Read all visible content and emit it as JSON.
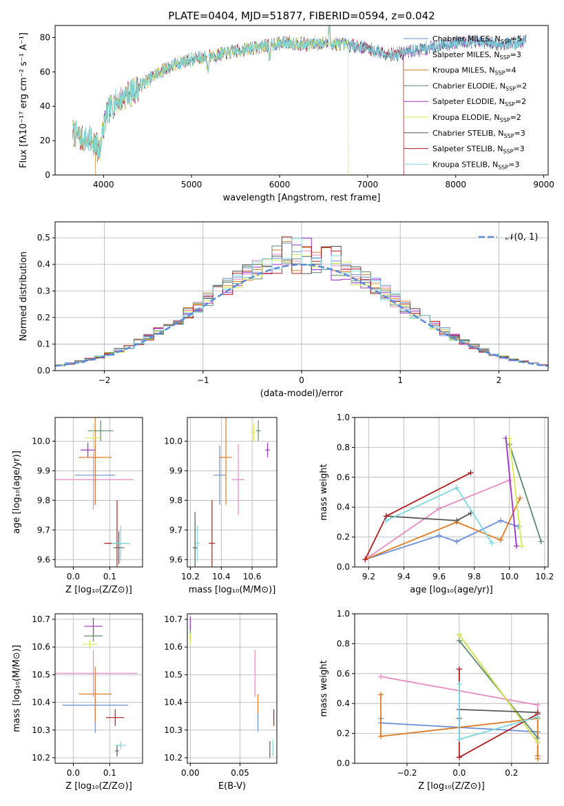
{
  "figure_title": "PLATE=0404, MJD=51877, FIBERID=0594, z=0.042",
  "colors": {
    "chabrier_miles": "#6a8fd8",
    "salpeter_miles": "#e88ac1",
    "kroupa_miles": "#e07b22",
    "chabrier_elodie": "#5a8a6a",
    "salpeter_elodie": "#9b30c8",
    "kroupa_elodie": "#d8ea4a",
    "chabrier_stelib": "#555555",
    "salpeter_stelib": "#b01c1c",
    "kroupa_stelib": "#7ad8e0"
  },
  "chart_data": [
    {
      "id": "spectrum",
      "type": "line",
      "title": "PLATE=0404, MJD=51877, FIBERID=0594, z=0.042",
      "xlabel": "wavelength [Angstrom, rest frame]",
      "ylabel": "Flux [fλ10⁻¹⁷ erg cm⁻² s⁻¹ A⁻¹]",
      "xlim": [
        3450,
        9050
      ],
      "ylim": [
        0,
        87
      ],
      "xticks": [
        "4000",
        "5000",
        "6000",
        "7000",
        "8000",
        "9000"
      ],
      "xtick_values": [
        4000,
        5000,
        6000,
        7000,
        8000,
        9000
      ],
      "yticks": [
        "0",
        "20",
        "40",
        "60",
        "80"
      ],
      "ytick_values": [
        0,
        20,
        40,
        60,
        80
      ],
      "legend_position": "right",
      "legend": [
        "Chabrier MILES, N_SSP=5",
        "Salpeter MILES, N_SSP=3",
        "Kroupa MILES, N_SSP=4",
        "Chabrier ELODIE, N_SSP=2",
        "Salpeter ELODIE, N_SSP=2",
        "Kroupa ELODIE, N_SSP=2",
        "Chabrier STELIB, N_SSP=3",
        "Salpeter STELIB, N_SSP=3",
        "Kroupa STELIB, N_SSP=3"
      ],
      "continuum_x": [
        3650,
        3750,
        3850,
        3950,
        4050,
        4150,
        4250,
        4350,
        4500,
        4700,
        4900,
        5100,
        5300,
        5500,
        5700,
        5900,
        6100,
        6300,
        6500,
        6700,
        6900,
        7100,
        7300,
        7500,
        7700,
        7900,
        8100,
        8300,
        8500,
        8700,
        8800
      ],
      "continuum_y": [
        25,
        21,
        20,
        19,
        37,
        43,
        46,
        49,
        55,
        62,
        66,
        68,
        70,
        72,
        74,
        76,
        77,
        76,
        77,
        76,
        75,
        72,
        70,
        72,
        74,
        76,
        78,
        77,
        76,
        77,
        78
      ],
      "drops": [
        {
          "series": 2,
          "x": 3910
        },
        {
          "series": 5,
          "x": 6780
        },
        {
          "series": 7,
          "x": 7410
        }
      ]
    },
    {
      "id": "residuals",
      "type": "histogram",
      "xlabel": "(data-model)/error",
      "ylabel": "Normed distribution",
      "xlim": [
        -2.5,
        2.5
      ],
      "ylim": [
        0,
        0.56
      ],
      "xticks": [
        "−2",
        "−1",
        "0",
        "1",
        "2"
      ],
      "xtick_values": [
        -2,
        -1,
        0,
        1,
        2
      ],
      "yticks": [
        "0.0",
        "0.1",
        "0.2",
        "0.3",
        "0.4",
        "0.5"
      ],
      "ytick_values": [
        0,
        0.1,
        0.2,
        0.3,
        0.4,
        0.5
      ],
      "legend": "𝒩(0, 1)",
      "legend_position": "top-right",
      "bin_width": 0.1
    },
    {
      "id": "z-age",
      "type": "scatter",
      "xlabel": "Z [log₁₀(Z/Z⊙)]",
      "ylabel": "age  [log₁₀(age/yr)]",
      "xlim": [
        -0.05,
        0.19
      ],
      "ylim": [
        9.575,
        10.08
      ],
      "xticks": [
        "0.0",
        "0.1"
      ],
      "xtick_values": [
        0.0,
        0.1
      ],
      "yticks": [
        "9.6",
        "9.7",
        "9.8",
        "9.9",
        "10.0"
      ],
      "ytick_values": [
        9.6,
        9.7,
        9.8,
        9.9,
        10.0
      ],
      "points": [
        {
          "series": 0,
          "x": 0.06,
          "y": 9.885,
          "xerr": 0.055,
          "yerr": 0.1
        },
        {
          "series": 1,
          "x": 0.055,
          "y": 9.87,
          "xerr": 0.11,
          "yerr": 0.1
        },
        {
          "series": 2,
          "x": 0.06,
          "y": 9.945,
          "xerr": 0.045,
          "yerr": 0.16
        },
        {
          "series": 3,
          "x": 0.075,
          "y": 10.035,
          "xerr": 0.035,
          "yerr": 0.035
        },
        {
          "series": 4,
          "x": 0.04,
          "y": 9.97,
          "xerr": 0.02,
          "yerr": 0.025
        },
        {
          "series": 5,
          "x": 0.055,
          "y": 10.01,
          "xerr": 0.02,
          "yerr": 0.05
        },
        {
          "series": 6,
          "x": 0.125,
          "y": 9.64,
          "xerr": 0.015,
          "yerr": 0.055
        },
        {
          "series": 7,
          "x": 0.12,
          "y": 9.655,
          "xerr": 0.035,
          "yerr": 0.145
        },
        {
          "series": 8,
          "x": 0.13,
          "y": 9.655,
          "xerr": 0.025,
          "yerr": 0.06
        }
      ]
    },
    {
      "id": "mass-age",
      "type": "scatter",
      "xlabel": "mass [log₁₀(M/M⊙)]",
      "ylabel": "",
      "xlim": [
        10.18,
        10.76
      ],
      "ylim": [
        9.575,
        10.08
      ],
      "xticks": [
        "10.2",
        "10.4",
        "10.6"
      ],
      "xtick_values": [
        10.2,
        10.4,
        10.6
      ],
      "yticks": [
        "9.6",
        "9.7",
        "9.8",
        "9.9",
        "10.0"
      ],
      "ytick_values": [
        9.6,
        9.7,
        9.8,
        9.9,
        10.0
      ],
      "points": [
        {
          "series": 0,
          "x": 10.39,
          "y": 9.885,
          "xerr": 0.04,
          "yerr": 0.1
        },
        {
          "series": 1,
          "x": 10.51,
          "y": 9.87,
          "xerr": 0.04,
          "yerr": 0.12
        },
        {
          "series": 2,
          "x": 10.43,
          "y": 9.945,
          "xerr": 0.04,
          "yerr": 0.16
        },
        {
          "series": 3,
          "x": 10.64,
          "y": 10.035,
          "xerr": 0.015,
          "yerr": 0.035
        },
        {
          "series": 4,
          "x": 10.7,
          "y": 9.97,
          "xerr": 0.015,
          "yerr": 0.025
        },
        {
          "series": 5,
          "x": 10.61,
          "y": 10.03,
          "xerr": 0.01,
          "yerr": 0.03
        },
        {
          "series": 6,
          "x": 10.23,
          "y": 9.64,
          "xerr": 0.015,
          "yerr": 0.12
        },
        {
          "series": 7,
          "x": 10.34,
          "y": 9.655,
          "xerr": 0.02,
          "yerr": 0.145
        },
        {
          "series": 8,
          "x": 10.245,
          "y": 9.655,
          "xerr": 0.015,
          "yerr": 0.06
        }
      ]
    },
    {
      "id": "age-weight",
      "type": "line",
      "xlabel": "age  [log₁₀(age/yr)]",
      "ylabel": "mass weight",
      "xlim": [
        9.12,
        10.22
      ],
      "ylim": [
        0,
        1.0
      ],
      "xticks": [
        "9.2",
        "9.4",
        "9.6",
        "9.8",
        "10.0",
        "10.2"
      ],
      "xtick_values": [
        9.2,
        9.4,
        9.6,
        9.8,
        10.0,
        10.2
      ],
      "yticks": [
        "0.0",
        "0.2",
        "0.4",
        "0.6",
        "0.8",
        "1.0"
      ],
      "ytick_values": [
        0,
        0.2,
        0.4,
        0.6,
        0.8,
        1.0
      ],
      "series": [
        {
          "x": [
            9.18,
            9.6,
            9.7,
            9.95,
            10.05
          ],
          "y": [
            0.05,
            0.21,
            0.17,
            0.31,
            0.27
          ]
        },
        {
          "x": [
            9.18,
            9.6,
            10.0
          ],
          "y": [
            0.05,
            0.39,
            0.58
          ]
        },
        {
          "x": [
            9.18,
            9.7,
            9.95,
            10.06
          ],
          "y": [
            0.05,
            0.3,
            0.18,
            0.46
          ]
        },
        {
          "x": [
            10.0,
            10.18
          ],
          "y": [
            0.82,
            0.17
          ]
        },
        {
          "x": [
            9.98,
            10.04
          ],
          "y": [
            0.86,
            0.14
          ]
        },
        {
          "x": [
            10.0,
            10.07
          ],
          "y": [
            0.86,
            0.14
          ]
        },
        {
          "x": [
            9.3,
            9.7,
            9.78
          ],
          "y": [
            0.34,
            0.31,
            0.36
          ]
        },
        {
          "x": [
            9.18,
            9.3,
            9.78
          ],
          "y": [
            0.05,
            0.34,
            0.63
          ]
        },
        {
          "x": [
            9.3,
            9.7,
            9.9
          ],
          "y": [
            0.31,
            0.53,
            0.16
          ]
        }
      ]
    },
    {
      "id": "z-mass",
      "type": "scatter",
      "xlabel": "Z [log₁₀(Z/Z⊙)]",
      "ylabel": "mass [log₁₀(M/M⊙)]",
      "xlim": [
        -0.05,
        0.19
      ],
      "ylim": [
        10.18,
        10.72
      ],
      "xticks": [
        "0.0",
        "0.1"
      ],
      "xtick_values": [
        0.0,
        0.1
      ],
      "yticks": [
        "10.2",
        "10.3",
        "10.4",
        "10.5",
        "10.6",
        "10.7"
      ],
      "ytick_values": [
        10.2,
        10.3,
        10.4,
        10.5,
        10.6,
        10.7
      ],
      "points": [
        {
          "series": 0,
          "x": 0.06,
          "y": 10.39,
          "xerr": 0.09,
          "yerr": 0.1
        },
        {
          "series": 1,
          "x": 0.055,
          "y": 10.505,
          "xerr": 0.12,
          "yerr": 0.085
        },
        {
          "series": 2,
          "x": 0.06,
          "y": 10.43,
          "xerr": 0.045,
          "yerr": 0.1
        },
        {
          "series": 3,
          "x": 0.055,
          "y": 10.64,
          "xerr": 0.025,
          "yerr": 0.02
        },
        {
          "series": 4,
          "x": 0.055,
          "y": 10.675,
          "xerr": 0.025,
          "yerr": 0.03
        },
        {
          "series": 5,
          "x": 0.045,
          "y": 10.61,
          "xerr": 0.02,
          "yerr": 0.015
        },
        {
          "series": 6,
          "x": 0.12,
          "y": 10.225,
          "xerr": 0.005,
          "yerr": 0.02
        },
        {
          "series": 7,
          "x": 0.115,
          "y": 10.345,
          "xerr": 0.025,
          "yerr": 0.03
        },
        {
          "series": 8,
          "x": 0.13,
          "y": 10.245,
          "xerr": 0.015,
          "yerr": 0.015
        }
      ]
    },
    {
      "id": "ebv-mass",
      "type": "scatter",
      "xlabel": "E(B-V)",
      "ylabel": "",
      "xlim": [
        -0.003,
        0.087
      ],
      "ylim": [
        10.18,
        10.72
      ],
      "xticks": [
        "0.00",
        "0.05"
      ],
      "xtick_values": [
        0.0,
        0.05
      ],
      "yticks": [
        "10.2",
        "10.3",
        "10.4",
        "10.5",
        "10.6",
        "10.7"
      ],
      "ytick_values": [
        10.2,
        10.3,
        10.4,
        10.5,
        10.6,
        10.7
      ],
      "points": [
        {
          "series": 0,
          "x": 0.068,
          "y": 10.335,
          "xerr": 0.0,
          "yerr": 0.04
        },
        {
          "series": 1,
          "x": 0.065,
          "y": 10.505,
          "xerr": 0.0,
          "yerr": 0.085
        },
        {
          "series": 2,
          "x": 0.068,
          "y": 10.395,
          "xerr": 0.0,
          "yerr": 0.035
        },
        {
          "series": 3,
          "x": 0.0,
          "y": 10.64,
          "xerr": 0.0,
          "yerr": 0.02
        },
        {
          "series": 4,
          "x": 0.0,
          "y": 10.685,
          "xerr": 0.0,
          "yerr": 0.025
        },
        {
          "series": 5,
          "x": 0.0,
          "y": 10.63,
          "xerr": 0.0,
          "yerr": 0.02
        },
        {
          "series": 6,
          "x": 0.08,
          "y": 10.23,
          "xerr": 0.0,
          "yerr": 0.03
        },
        {
          "series": 7,
          "x": 0.084,
          "y": 10.345,
          "xerr": 0.0,
          "yerr": 0.03
        },
        {
          "series": 8,
          "x": 0.083,
          "y": 10.235,
          "xerr": 0.0,
          "yerr": 0.03
        }
      ]
    },
    {
      "id": "z-weight",
      "type": "line",
      "xlabel": "Z [log₁₀(Z/Z⊙)]",
      "ylabel": "mass weight",
      "xlim": [
        -0.4,
        0.34
      ],
      "ylim": [
        0,
        1.0
      ],
      "xticks": [
        "−0.2",
        "0.0",
        "0.2"
      ],
      "xtick_values": [
        -0.2,
        0.0,
        0.2
      ],
      "yticks": [
        "0.0",
        "0.2",
        "0.4",
        "0.6",
        "0.8",
        "1.0"
      ],
      "ytick_values": [
        0,
        0.2,
        0.4,
        0.6,
        0.8,
        1.0
      ],
      "series": [
        {
          "x": [
            -0.3,
            -0.3,
            0.3,
            0.3
          ],
          "y": [
            0.3,
            0.27,
            0.21,
            0.05
          ]
        },
        {
          "x": [
            -0.3,
            0.3,
            0.3
          ],
          "y": [
            0.58,
            0.39,
            0.05
          ]
        },
        {
          "x": [
            -0.3,
            -0.3,
            0.3,
            0.3,
            0.3
          ],
          "y": [
            0.46,
            0.18,
            0.3,
            0.05,
            0.03
          ]
        },
        {
          "x": [
            0.0,
            0.3
          ],
          "y": [
            0.82,
            0.17
          ]
        },
        {
          "x": [
            0.0,
            0.3
          ],
          "y": [
            0.86,
            0.14
          ]
        },
        {
          "x": [
            0.0,
            0.3
          ],
          "y": [
            0.86,
            0.14
          ]
        },
        {
          "x": [
            0.0,
            0.0,
            0.3
          ],
          "y": [
            0.3,
            0.36,
            0.34
          ]
        },
        {
          "x": [
            0.0,
            0.0,
            0.3
          ],
          "y": [
            0.63,
            0.04,
            0.33
          ]
        },
        {
          "x": [
            0.0,
            0.0,
            0.3
          ],
          "y": [
            0.53,
            0.16,
            0.31
          ]
        }
      ]
    }
  ]
}
